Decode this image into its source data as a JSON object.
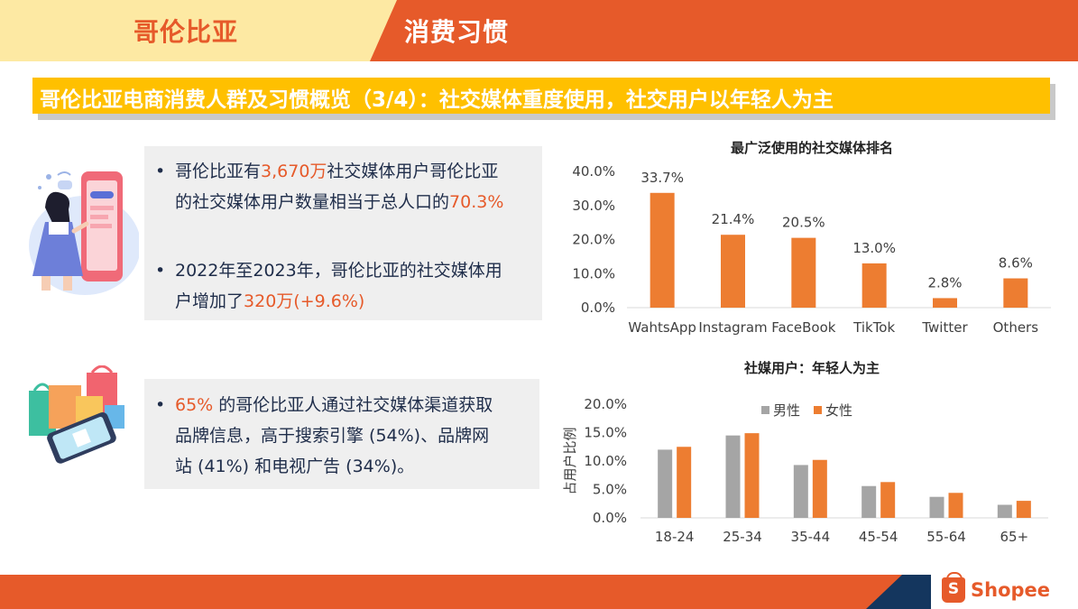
{
  "header": {
    "left_title": "哥伦比亚",
    "right_title": "消费习惯"
  },
  "banner": {
    "text": "哥伦比亚电商消费人群及习惯概览（3/4）：社交媒体重度使用，社交用户以年轻人为主"
  },
  "bullets1": [
    {
      "lines": [
        [
          {
            "t": "哥伦比亚有"
          },
          {
            "t": "3,670万",
            "hl": true
          },
          {
            "t": "社交媒体用户哥伦比亚"
          }
        ],
        [
          {
            "t": "的社交媒体用户数量相当于总人口的"
          },
          {
            "t": "70.3%",
            "hl": true
          }
        ]
      ]
    },
    {
      "lines": [
        [
          {
            "t": "2022年至2023年，哥伦比亚的社交媒体用"
          }
        ],
        [
          {
            "t": "户增加了"
          },
          {
            "t": "320万(+9.6%)",
            "hl": true
          }
        ]
      ]
    }
  ],
  "bullets2": [
    {
      "lines": [
        [
          {
            "t": "65%",
            "hl": true
          },
          {
            "t": " 的哥伦比亚人通过社交媒体渠道获取"
          }
        ],
        [
          {
            "t": "品牌信息，高于搜索引擎 (54%)、品牌网"
          }
        ],
        [
          {
            "t": "站 (41%) 和电视广告 (34%)。"
          }
        ]
      ]
    }
  ],
  "bullet_symbol": "•",
  "colors": {
    "accent": "#e65a2a",
    "gold": "#ffc000",
    "navy": "#14365e",
    "bar_orange": "#ed7d31",
    "bar_gray": "#a5a5a5",
    "text_dark": "#1f2d4a"
  },
  "chart_data": [
    {
      "type": "bar",
      "title": "最广泛使用的社交媒体排名",
      "categories": [
        "WahtsApp",
        "Instagram",
        "FaceBook",
        "TikTok",
        "Twitter",
        "Others"
      ],
      "values": [
        33.7,
        21.4,
        20.5,
        13.0,
        2.8,
        8.6
      ],
      "data_labels": [
        "33.7%",
        "21.4%",
        "20.5%",
        "13.0%",
        "2.8%",
        "8.6%"
      ],
      "ylim": [
        0,
        40
      ],
      "yticks": [
        "0.0%",
        "10.0%",
        "20.0%",
        "30.0%",
        "40.0%"
      ],
      "grid": false
    },
    {
      "type": "bar",
      "title": "社媒用户：年轻人为主",
      "ylabel": "占用户比例",
      "categories": [
        "18-24",
        "25-34",
        "35-44",
        "45-54",
        "55-64",
        "65+"
      ],
      "series": [
        {
          "name": "男性",
          "values": [
            12.0,
            14.5,
            9.3,
            5.6,
            3.7,
            2.3
          ]
        },
        {
          "name": "女性",
          "values": [
            12.5,
            14.9,
            10.2,
            6.3,
            4.4,
            3.0
          ]
        }
      ],
      "ylim": [
        0,
        20
      ],
      "yticks": [
        "0.0%",
        "5.0%",
        "10.0%",
        "15.0%",
        "20.0%"
      ],
      "legend": "top-center",
      "grid": false
    }
  ],
  "footer": {
    "logo_text": "Shopee",
    "logo_letter": "S"
  },
  "icons": {
    "illustration1": "woman-phone-illustration",
    "illustration2": "shopping-phone-illustration"
  }
}
